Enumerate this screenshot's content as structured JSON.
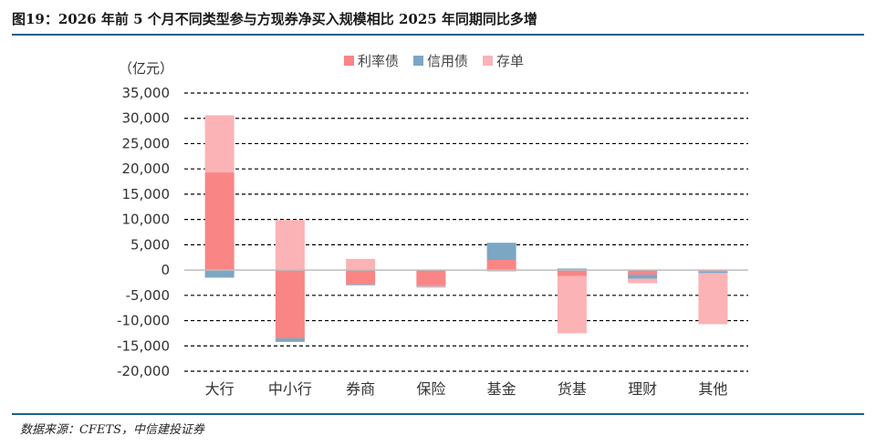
{
  "figure": {
    "title": "图19：2026 年前 5 个月不同类型参与方现券净买入规模相比 2025 年同期同比多增",
    "source": "数据来源：CFETS，中信建投证券"
  },
  "colors": {
    "利率债": "#f98585",
    "信用债": "#7ba7c4",
    "存单": "#fbb3b6",
    "rule": "#1f5f8b"
  },
  "chart_data": {
    "type": "bar",
    "stacked": true,
    "unit_label": "（亿元）",
    "categories": [
      "大行",
      "中小行",
      "券商",
      "保险",
      "基金",
      "货基",
      "理财",
      "其他"
    ],
    "series": [
      {
        "name": "利率债",
        "values": [
          19300,
          -13500,
          -2800,
          -3000,
          2000,
          -1200,
          -900,
          -300
        ]
      },
      {
        "name": "信用债",
        "values": [
          -1500,
          -700,
          -200,
          -200,
          3400,
          300,
          -800,
          -300
        ]
      },
      {
        "name": "存单",
        "values": [
          11300,
          9900,
          2200,
          -300,
          -300,
          -11300,
          -900,
          -10100
        ]
      }
    ],
    "ylim": [
      -20000,
      35000
    ],
    "yticks": [
      "-20,000",
      "-15,000",
      "-10,000",
      "-5,000",
      "0",
      "5,000",
      "10,000",
      "15,000",
      "20,000",
      "25,000",
      "30,000",
      "35,000"
    ],
    "ytick_values": [
      -20000,
      -15000,
      -10000,
      -5000,
      0,
      5000,
      10000,
      15000,
      20000,
      25000,
      30000,
      35000
    ],
    "grid": true,
    "legend_position": "top-center"
  }
}
